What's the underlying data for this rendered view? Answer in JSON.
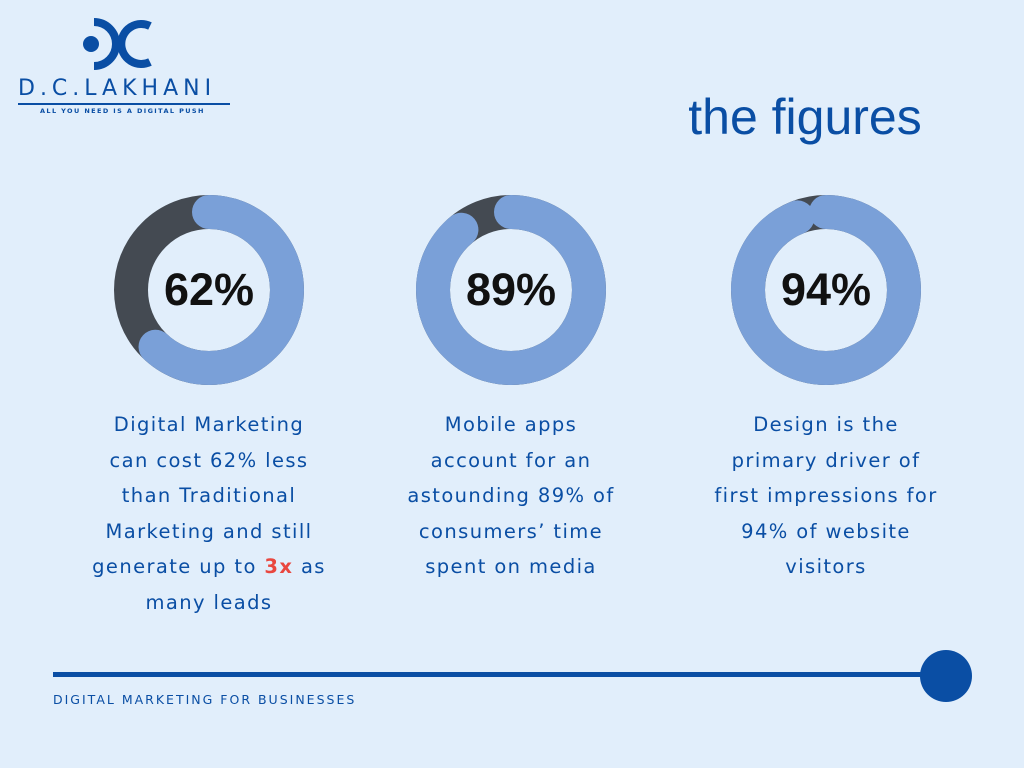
{
  "brand": {
    "name": "D.C.LAKHANI",
    "tagline": "ALL YOU NEED IS A DIGITAL PUSH",
    "color": "#0a4ea4"
  },
  "title": "the figures",
  "stats": [
    {
      "percent": 62,
      "label": "62%",
      "lines": [
        "Digital Marketing",
        "can cost 62% less",
        "than Traditional",
        "Marketing and still"
      ],
      "line5_before": "generate up to ",
      "line5_accent": "3x",
      "line5_after": " as",
      "line6": "many leads"
    },
    {
      "percent": 89,
      "label": "89%",
      "lines": [
        "Mobile apps",
        "account for an",
        "astounding 89% of",
        "consumers’ time",
        "spent on media"
      ]
    },
    {
      "percent": 94,
      "label": "94%",
      "lines": [
        "Design is the",
        "primary driver of",
        "first impressions for",
        "94% of website",
        "visitors"
      ]
    }
  ],
  "colors": {
    "background": "#e1eefb",
    "ring_fill": "#7aa0d8",
    "ring_track": "#444a52",
    "accent": "#e9473f"
  },
  "footer": "DIGITAL MARKETING FOR BUSINESSES"
}
